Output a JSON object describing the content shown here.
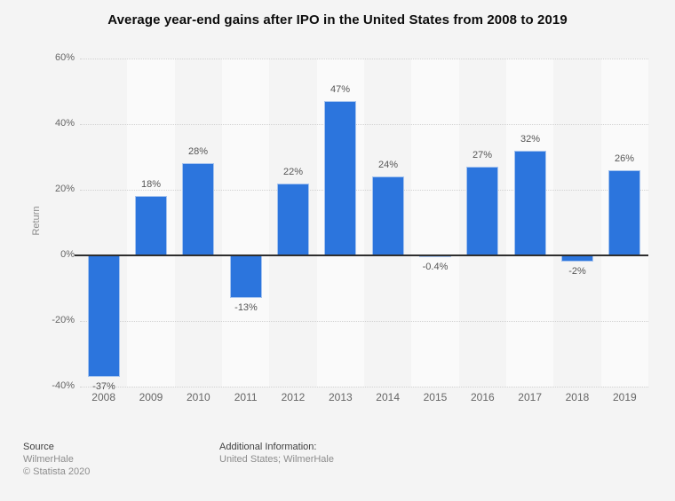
{
  "page": {
    "background_color": "#f4f4f4"
  },
  "chart_data": {
    "type": "bar",
    "title": "Average year-end gains after IPO in the United States from 2008 to 2019",
    "xlabel": "",
    "ylabel": "Return",
    "categories": [
      "2008",
      "2009",
      "2010",
      "2011",
      "2012",
      "2013",
      "2014",
      "2015",
      "2016",
      "2017",
      "2018",
      "2019"
    ],
    "values": [
      -37,
      18,
      28,
      -13,
      22,
      47,
      24,
      -0.4,
      27,
      32,
      -2,
      26
    ],
    "value_labels": [
      "-37%",
      "18%",
      "28%",
      "-13%",
      "22%",
      "47%",
      "24%",
      "-0.4%",
      "27%",
      "32%",
      "-2%",
      "26%"
    ],
    "yticks": [
      {
        "value": 60,
        "label": "60%"
      },
      {
        "value": 40,
        "label": "40%"
      },
      {
        "value": 20,
        "label": "20%"
      },
      {
        "value": 0,
        "label": "0%"
      },
      {
        "value": -20,
        "label": "-20%"
      },
      {
        "value": -40,
        "label": "-40%"
      }
    ],
    "ylim": [
      -40,
      60
    ],
    "grid": "horizontal-dotted",
    "legend": "none",
    "bar_color": "#2c75dd",
    "bar_border_color": "#a6c4ef",
    "stripe_color": "#fafafa",
    "gridline_color": "#d2d2d2",
    "zero_line_color": "#2e2e2e"
  },
  "footer": {
    "source_heading": "Source",
    "source_name": "WilmerHale",
    "copyright": "© Statista 2020",
    "additional_heading": "Additional Information:",
    "additional_text": "United States; WilmerHale"
  }
}
